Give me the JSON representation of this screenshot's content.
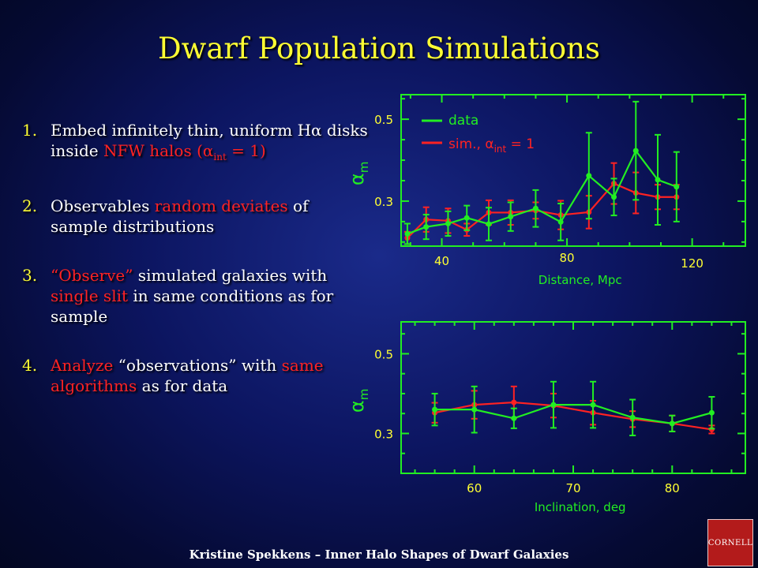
{
  "slide": {
    "title": "Dwarf Population Simulations",
    "footer": "Kristine Spekkens – Inner Halo Shapes of Dwarf Galaxies",
    "logo_text": "CORNELL",
    "bullets": [
      {
        "num": "1.",
        "parts": [
          {
            "t": " Embed infinitely thin, uniform H",
            "c": "w"
          },
          {
            "t": "α",
            "c": "w"
          },
          {
            "t": " disks inside ",
            "c": "w"
          },
          {
            "t": "NFW halos",
            "c": "r"
          },
          {
            "t": " (",
            "c": "r"
          },
          {
            "t": "α",
            "c": "r"
          },
          {
            "t": "int",
            "c": "r",
            "sub": true
          },
          {
            "t": " = 1)",
            "c": "r"
          }
        ]
      },
      {
        "num": "2.",
        "parts": [
          {
            "t": " Observables ",
            "c": "w"
          },
          {
            "t": "random deviates",
            "c": "r"
          },
          {
            "t": " of sample distributions",
            "c": "w"
          }
        ]
      },
      {
        "num": "3.",
        "parts": [
          {
            "t": " “Observe”",
            "c": "r"
          },
          {
            "t": " simulated galaxies with ",
            "c": "w"
          },
          {
            "t": "single slit",
            "c": "r"
          },
          {
            "t": " in same conditions as for sample",
            "c": "w"
          }
        ]
      },
      {
        "num": "4.",
        "parts": [
          {
            "t": " Analyze",
            "c": "r"
          },
          {
            "t": " “observations” with ",
            "c": "w"
          },
          {
            "t": "same algorithms",
            "c": "r"
          },
          {
            "t": " as for data",
            "c": "w"
          }
        ]
      }
    ]
  },
  "colors": {
    "data": "#22ee22",
    "sim": "#ff2222",
    "frame": "#22ee22"
  },
  "chart_data": [
    {
      "type": "line",
      "xlabel": "Distance, Mpc",
      "ylabel": "α",
      "ylabel_sub": "m",
      "xlim": [
        27,
        137
      ],
      "ylim": [
        0.19,
        0.56
      ],
      "xticks": [
        40,
        80,
        120
      ],
      "yticks": [
        0.3,
        0.5
      ],
      "legend": {
        "position": "top-left",
        "entries": [
          "data",
          "sim., α",
          "int",
          " = 1"
        ]
      },
      "series": [
        {
          "name": "data",
          "x": [
            29,
            35,
            42,
            48,
            55,
            62,
            70,
            78,
            87,
            95,
            102,
            109,
            115
          ],
          "y": [
            0.22,
            0.237,
            0.245,
            0.259,
            0.244,
            0.262,
            0.282,
            0.249,
            0.362,
            0.31,
            0.423,
            0.352,
            0.335
          ],
          "err": [
            0.025,
            0.03,
            0.03,
            0.03,
            0.04,
            0.035,
            0.045,
            0.045,
            0.105,
            0.045,
            0.12,
            0.11,
            0.085
          ]
        },
        {
          "name": "sim., αint = 1",
          "x": [
            29,
            35,
            42,
            48,
            55,
            62,
            70,
            78,
            87,
            95,
            102,
            109,
            115
          ],
          "y": [
            0.21,
            0.255,
            0.252,
            0.23,
            0.272,
            0.272,
            0.277,
            0.266,
            0.273,
            0.343,
            0.32,
            0.31,
            0.31
          ],
          "err": [
            0.015,
            0.03,
            0.03,
            0.015,
            0.03,
            0.03,
            0.02,
            0.035,
            0.04,
            0.05,
            0.05,
            0.03,
            0.03
          ]
        }
      ]
    },
    {
      "type": "line",
      "xlabel": "Inclination, deg",
      "ylabel": "α",
      "ylabel_sub": "m",
      "xlim": [
        52.6,
        87.4
      ],
      "ylim": [
        0.2,
        0.58
      ],
      "xticks": [
        60,
        70,
        80
      ],
      "yticks": [
        0.3,
        0.5
      ],
      "series": [
        {
          "name": "data",
          "x": [
            56,
            60,
            64,
            68,
            72,
            76,
            80,
            84
          ],
          "y": [
            0.36,
            0.36,
            0.338,
            0.372,
            0.372,
            0.34,
            0.325,
            0.352
          ],
          "err": [
            0.04,
            0.058,
            0.025,
            0.058,
            0.058,
            0.045,
            0.02,
            0.04
          ]
        },
        {
          "name": "sim., αint = 1",
          "x": [
            56,
            60,
            64,
            68,
            72,
            76,
            80,
            84
          ],
          "y": [
            0.352,
            0.372,
            0.378,
            0.37,
            0.352,
            0.336,
            0.325,
            0.31
          ],
          "err": [
            0.025,
            0.035,
            0.04,
            0.03,
            0.03,
            0.02,
            0.02,
            0.01
          ]
        }
      ]
    }
  ]
}
